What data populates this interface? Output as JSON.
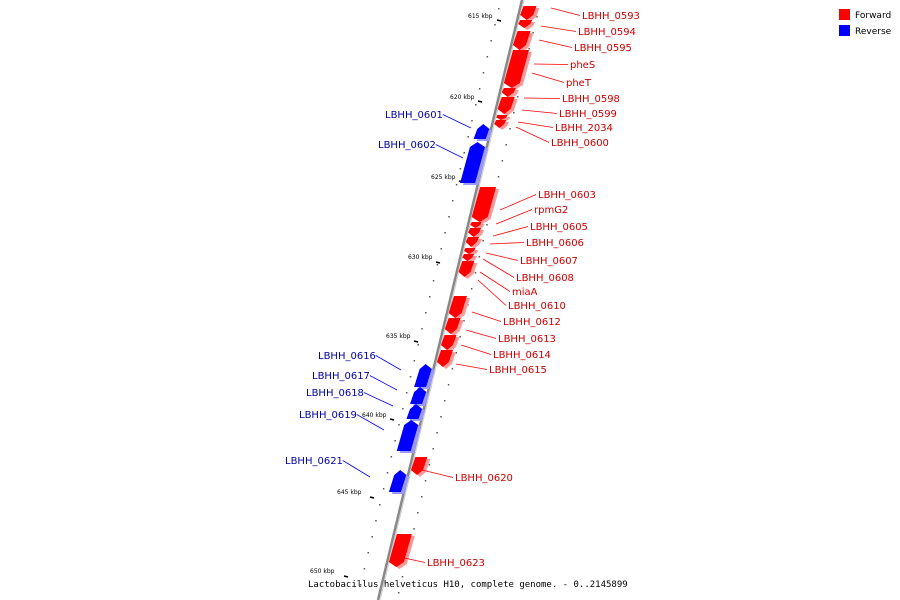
{
  "caption": "Lactobacillus helveticus H10, complete genome. - 0..2145899",
  "colors": {
    "forward": "#ff0000",
    "reverse": "#0000ff",
    "forward_label": "#cc0000",
    "reverse_label": "#0000aa",
    "backbone": "#888888"
  },
  "legend": [
    {
      "label": "Forward",
      "color": "#ff0000"
    },
    {
      "label": "Reverse",
      "color": "#0000ff"
    }
  ],
  "ticks": [
    "615 kbp",
    "620 kbp",
    "625 kbp",
    "630 kbp",
    "635 kbp",
    "640 kbp",
    "645 kbp",
    "650 kbp"
  ],
  "genes": [
    {
      "name": "LBHH_0593",
      "strand": "forward"
    },
    {
      "name": "LBHH_0594",
      "strand": "forward"
    },
    {
      "name": "LBHH_0595",
      "strand": "forward"
    },
    {
      "name": "pheS",
      "strand": "forward"
    },
    {
      "name": "pheT",
      "strand": "forward"
    },
    {
      "name": "LBHH_0598",
      "strand": "forward"
    },
    {
      "name": "LBHH_0599",
      "strand": "forward"
    },
    {
      "name": "LBHH_2034",
      "strand": "forward"
    },
    {
      "name": "LBHH_0600",
      "strand": "forward"
    },
    {
      "name": "LBHH_0601",
      "strand": "reverse"
    },
    {
      "name": "LBHH_0602",
      "strand": "reverse"
    },
    {
      "name": "LBHH_0603",
      "strand": "forward"
    },
    {
      "name": "rpmG2",
      "strand": "forward"
    },
    {
      "name": "LBHH_0605",
      "strand": "forward"
    },
    {
      "name": "LBHH_0606",
      "strand": "forward"
    },
    {
      "name": "LBHH_0607",
      "strand": "forward"
    },
    {
      "name": "LBHH_0608",
      "strand": "forward"
    },
    {
      "name": "miaA",
      "strand": "forward"
    },
    {
      "name": "LBHH_0610",
      "strand": "forward"
    },
    {
      "name": "LBHH_0612",
      "strand": "forward"
    },
    {
      "name": "LBHH_0613",
      "strand": "forward"
    },
    {
      "name": "LBHH_0614",
      "strand": "forward"
    },
    {
      "name": "LBHH_0615",
      "strand": "forward"
    },
    {
      "name": "LBHH_0616",
      "strand": "reverse"
    },
    {
      "name": "LBHH_0617",
      "strand": "reverse"
    },
    {
      "name": "LBHH_0618",
      "strand": "reverse"
    },
    {
      "name": "LBHH_0619",
      "strand": "reverse"
    },
    {
      "name": "LBHH_0620",
      "strand": "forward"
    },
    {
      "name": "LBHH_0621",
      "strand": "reverse"
    },
    {
      "name": "LBHH_0623",
      "strand": "forward"
    }
  ]
}
